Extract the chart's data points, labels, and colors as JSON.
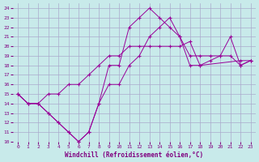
{
  "xlabel": "Windchill (Refroidissement éolien,°C)",
  "background_color": "#c8eaea",
  "grid_color": "#aaaacc",
  "line_color": "#990099",
  "xlim": [
    -0.5,
    23.5
  ],
  "ylim": [
    10,
    24.5
  ],
  "xticks": [
    0,
    1,
    2,
    3,
    4,
    5,
    6,
    7,
    8,
    9,
    10,
    11,
    12,
    13,
    14,
    15,
    16,
    17,
    18,
    19,
    20,
    21,
    22,
    23
  ],
  "yticks": [
    10,
    11,
    12,
    13,
    14,
    15,
    16,
    17,
    18,
    19,
    20,
    21,
    22,
    23,
    24
  ],
  "line1_x": [
    0,
    1,
    2,
    3,
    4,
    5,
    6,
    7,
    8,
    9,
    10,
    11,
    12,
    13,
    14,
    15,
    16,
    17,
    18,
    19,
    20,
    21,
    22,
    23
  ],
  "line1_y": [
    15,
    14,
    14,
    15,
    15,
    16,
    16,
    17,
    18,
    19,
    19,
    20,
    20,
    20,
    20,
    20,
    20,
    20.5,
    18,
    18.5,
    19,
    21,
    18,
    18.5
  ],
  "line2_x": [
    0,
    1,
    2,
    3,
    4,
    5,
    6,
    7,
    8,
    9,
    10,
    11,
    12,
    13,
    14,
    15,
    16,
    17,
    18,
    22,
    23
  ],
  "line2_y": [
    15,
    14,
    14,
    13,
    12,
    11,
    10,
    11,
    14,
    18,
    18,
    22,
    23,
    24,
    23,
    22,
    21,
    18,
    18,
    18.5,
    18.5
  ],
  "line3_x": [
    0,
    1,
    2,
    3,
    4,
    5,
    6,
    7,
    8,
    9,
    10,
    11,
    12,
    13,
    14,
    15,
    16,
    17,
    18,
    19,
    20,
    21,
    22,
    23
  ],
  "line3_y": [
    15,
    14,
    14,
    13,
    12,
    11,
    10,
    11,
    14,
    16,
    16,
    18,
    19,
    21,
    22,
    23,
    21,
    19,
    19,
    19,
    19,
    19,
    18,
    18.5
  ]
}
